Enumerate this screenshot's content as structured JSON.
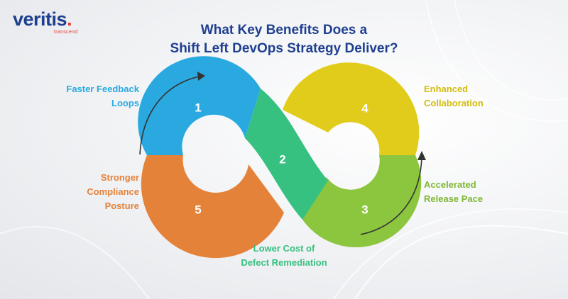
{
  "logo": {
    "name": "veritis",
    "tagline": "transcend"
  },
  "title": {
    "line1": "What Key Benefits Does a",
    "line2": "Shift Left DevOps Strategy Deliver?"
  },
  "colors": {
    "title": "#1f3f8f",
    "segment_1": "#2aa9e0",
    "segment_2": "#36c180",
    "segment_3": "#8cc63e",
    "segment_4": "#e2cc1b",
    "segment_5": "#e5823a"
  },
  "segments": [
    {
      "number": "1",
      "label_lines": [
        "Faster Feedback",
        "Loops"
      ]
    },
    {
      "number": "2",
      "label_lines": [
        "Lower Cost of",
        "Defect Remediation"
      ]
    },
    {
      "number": "3",
      "label_lines": [
        "Accelerated",
        "Release Pace"
      ]
    },
    {
      "number": "4",
      "label_lines": [
        "Enhanced",
        "Collaboration"
      ]
    },
    {
      "number": "5",
      "label_lines": [
        "Stronger",
        "Compliance",
        "Posture"
      ]
    }
  ]
}
